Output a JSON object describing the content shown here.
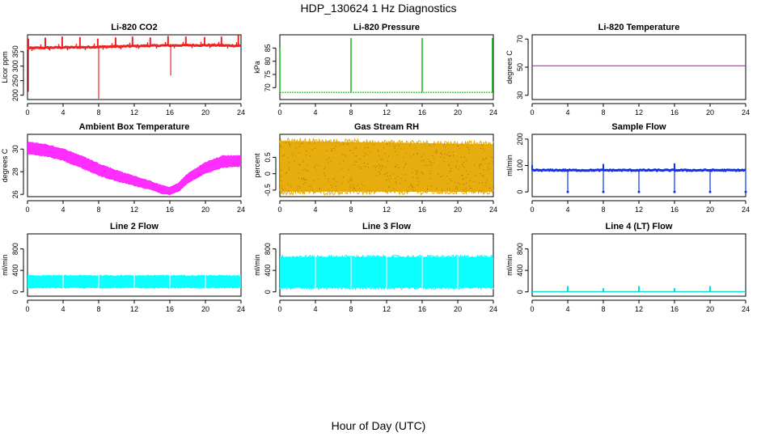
{
  "figure": {
    "title": "HDP_130624  1 Hz Diagnostics",
    "xlabel": "Hour of Day (UTC)"
  },
  "chart_data": [
    {
      "type": "line",
      "title": "Li-820 CO2",
      "ylabel": "Licor ppm",
      "color": "#ee2222",
      "xlim": [
        0,
        24
      ],
      "xticks": [
        0,
        4,
        8,
        12,
        16,
        20,
        24
      ],
      "ylim": [
        185,
        408
      ],
      "yticks": [
        200,
        250,
        300,
        350
      ],
      "series": [
        {
          "name": "baseline",
          "x": [
            0,
            3,
            6,
            9,
            12,
            15,
            18,
            21,
            24
          ],
          "y": [
            362,
            364,
            365,
            367,
            369,
            371,
            372,
            372,
            370
          ]
        },
        {
          "name": "spikes",
          "x": [
            0.1,
            2.0,
            3.9,
            5.9,
            7.9,
            9.9,
            11.8,
            13.8,
            15.8,
            17.8,
            19.9,
            21.8,
            23.7
          ],
          "y": [
            395,
            398,
            402,
            400,
            395,
            399,
            402,
            399,
            404,
            402,
            400,
            402,
            406
          ]
        },
        {
          "name": "dips",
          "x": [
            0.1,
            8.0,
            16.1
          ],
          "y": [
            212,
            188,
            268
          ]
        }
      ]
    },
    {
      "type": "line",
      "title": "Li-820 Pressure",
      "ylabel": "kPa",
      "color": "#22bb22",
      "xlim": [
        0,
        24
      ],
      "xticks": [
        0,
        4,
        8,
        12,
        16,
        20,
        24
      ],
      "ylim": [
        65.5,
        90
      ],
      "yticks": [
        70,
        75,
        80,
        85
      ],
      "series": [
        {
          "name": "baseline",
          "x": [
            0,
            24
          ],
          "y": [
            68.2,
            68.2
          ]
        },
        {
          "name": "spikes",
          "x": [
            0.0,
            8.0,
            16.0,
            23.9
          ],
          "y": [
            85.3,
            88.8,
            88.8,
            88.8
          ]
        }
      ]
    },
    {
      "type": "line",
      "title": "Li-820 Temperature",
      "ylabel": "degrees C",
      "color": "#cc22cc",
      "xlim": [
        0,
        24
      ],
      "xticks": [
        0,
        4,
        8,
        12,
        16,
        20,
        24
      ],
      "ylim": [
        27,
        73
      ],
      "yticks": [
        30,
        50,
        70
      ],
      "series": [
        {
          "name": "temperature",
          "x": [
            0,
            24
          ],
          "y": [
            51,
            51
          ]
        }
      ]
    },
    {
      "type": "area",
      "title": "Ambient Box Temperature",
      "ylabel": "degrees C",
      "color": "#ff22ff",
      "xlim": [
        0,
        24
      ],
      "xticks": [
        0,
        4,
        8,
        12,
        16,
        20,
        24
      ],
      "ylim": [
        25.8,
        31.3
      ],
      "yticks": [
        26,
        28,
        30
      ],
      "series": [
        {
          "name": "upper",
          "x": [
            0,
            2,
            4,
            6,
            8,
            10,
            12,
            14,
            15,
            16,
            17,
            18,
            20,
            22,
            24
          ],
          "y": [
            30.6,
            30.4,
            30.0,
            29.4,
            28.7,
            28.1,
            27.6,
            27.1,
            26.8,
            26.6,
            27.0,
            27.8,
            28.8,
            29.4,
            29.4
          ]
        },
        {
          "name": "lower",
          "x": [
            0,
            2,
            4,
            6,
            8,
            10,
            12,
            14,
            15,
            16,
            17,
            18,
            20,
            22,
            24
          ],
          "y": [
            29.6,
            29.4,
            29.0,
            28.4,
            27.7,
            27.2,
            26.8,
            26.4,
            26.1,
            26.0,
            26.3,
            27.0,
            27.9,
            28.4,
            28.5
          ]
        }
      ]
    },
    {
      "type": "area",
      "title": "Gas Stream RH",
      "ylabel": "percent",
      "color": "#e6a800",
      "xlim": [
        0,
        24
      ],
      "xticks": [
        0,
        4,
        8,
        12,
        16,
        20,
        24
      ],
      "ylim": [
        -0.7,
        1.2
      ],
      "yticks": [
        -0.5,
        0.0,
        0.5
      ],
      "series": [
        {
          "name": "upper",
          "x": [
            0,
            24
          ],
          "y": [
            1.0,
            0.9
          ]
        },
        {
          "name": "lower",
          "x": [
            0,
            24
          ],
          "y": [
            -0.55,
            -0.55
          ]
        }
      ]
    },
    {
      "type": "line",
      "title": "Sample Flow",
      "ylabel": "ml/min",
      "color": "#1133ee",
      "xlim": [
        0,
        24
      ],
      "xticks": [
        0,
        4,
        8,
        12,
        16,
        20,
        24
      ],
      "ylim": [
        -18,
        218
      ],
      "yticks": [
        0,
        100,
        200
      ],
      "series": [
        {
          "name": "baseline",
          "x": [
            0,
            24
          ],
          "y": [
            82,
            82
          ]
        },
        {
          "name": "dips",
          "x": [
            4,
            8,
            12,
            16,
            20,
            24
          ],
          "y": [
            0,
            0,
            0,
            0,
            0,
            0
          ]
        },
        {
          "name": "spikes",
          "x": [
            0,
            8,
            16
          ],
          "y": [
            102,
            106,
            108
          ]
        }
      ]
    },
    {
      "type": "area",
      "title": "Line 2 Flow",
      "ylabel": "ml/min",
      "color": "#00ffff",
      "xlim": [
        0,
        24
      ],
      "xticks": [
        0,
        4,
        8,
        12,
        16,
        20,
        24
      ],
      "ylim": [
        -80,
        1080
      ],
      "yticks": [
        0,
        400,
        800
      ],
      "series": [
        {
          "name": "upper",
          "x": [
            0,
            24
          ],
          "y": [
            300,
            300
          ]
        },
        {
          "name": "lower",
          "x": [
            0,
            24
          ],
          "y": [
            80,
            80
          ]
        }
      ]
    },
    {
      "type": "area",
      "title": "Line 3 Flow",
      "ylabel": "ml/min",
      "color": "#00ffff",
      "xlim": [
        0,
        24
      ],
      "xticks": [
        0,
        4,
        8,
        12,
        16,
        20,
        24
      ],
      "ylim": [
        -80,
        1080
      ],
      "yticks": [
        0,
        400,
        800
      ],
      "series": [
        {
          "name": "upper",
          "x": [
            0,
            24
          ],
          "y": [
            650,
            650
          ]
        },
        {
          "name": "lower",
          "x": [
            0,
            24
          ],
          "y": [
            80,
            80
          ]
        }
      ]
    },
    {
      "type": "line",
      "title": "Line 4 (LT) Flow",
      "ylabel": "ml/min",
      "color": "#00dddd",
      "xlim": [
        0,
        24
      ],
      "xticks": [
        0,
        4,
        8,
        12,
        16,
        20,
        24
      ],
      "ylim": [
        -80,
        1080
      ],
      "yticks": [
        0,
        400,
        800
      ],
      "series": [
        {
          "name": "baseline",
          "x": [
            0,
            24
          ],
          "y": [
            5,
            5
          ]
        },
        {
          "name": "spikes",
          "x": [
            4,
            8,
            12,
            16,
            20
          ],
          "y": [
            110,
            70,
            110,
            70,
            110
          ]
        }
      ]
    }
  ]
}
